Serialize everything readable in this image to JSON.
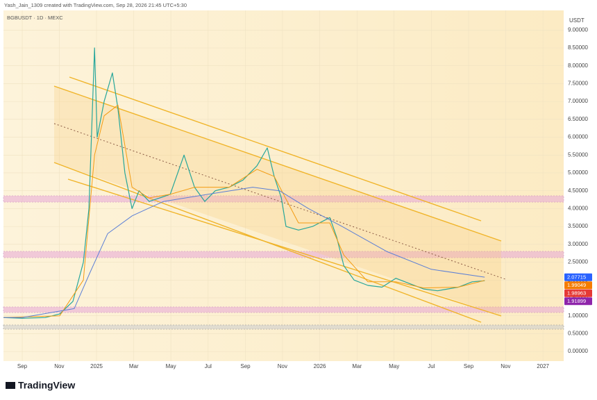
{
  "header": {
    "credit": "Yash_Jain_1309 created with TradingView.com, Sep 28, 2026 21:45 UTC+5:30",
    "symbol": "BGBUSDT · 1D · MEXC",
    "currency": "USDT",
    "logo": "TradingView"
  },
  "chart_data": {
    "type": "line",
    "xlim": [
      2024.583,
      2027.093
    ],
    "ylim": [
      -0.27,
      9.55
    ],
    "xticks": [
      {
        "value": 2024.667,
        "label": "Sep"
      },
      {
        "value": 2024.833,
        "label": "Nov"
      },
      {
        "value": 2025,
        "label": "2025"
      },
      {
        "value": 2025.167,
        "label": "Mar"
      },
      {
        "value": 2025.333,
        "label": "May"
      },
      {
        "value": 2025.5,
        "label": "Jul"
      },
      {
        "value": 2025.667,
        "label": "Sep"
      },
      {
        "value": 2025.833,
        "label": "Nov"
      },
      {
        "value": 2026,
        "label": "2026"
      },
      {
        "value": 2026.167,
        "label": "Mar"
      },
      {
        "value": 2026.333,
        "label": "May"
      },
      {
        "value": 2026.5,
        "label": "Jul"
      },
      {
        "value": 2026.667,
        "label": "Sep"
      },
      {
        "value": 2026.833,
        "label": "Nov"
      },
      {
        "value": 2027,
        "label": "2027"
      }
    ],
    "yticks": [
      {
        "value": 0,
        "label": "0.00000"
      },
      {
        "value": 0.5,
        "label": "0.50000"
      },
      {
        "value": 1,
        "label": "1.00000"
      },
      {
        "value": 1.5,
        "label": "1.50000"
      },
      {
        "value": 2,
        "label": "2.00000"
      },
      {
        "value": 2.5,
        "label": "2.50000"
      },
      {
        "value": 3,
        "label": "3.00000"
      },
      {
        "value": 3.5,
        "label": "3.50000"
      },
      {
        "value": 4,
        "label": "4.00000"
      },
      {
        "value": 4.5,
        "label": "4.50000"
      },
      {
        "value": 5,
        "label": "5.00000"
      },
      {
        "value": 5.5,
        "label": "5.50000"
      },
      {
        "value": 6,
        "label": "6.00000"
      },
      {
        "value": 6.5,
        "label": "6.50000"
      },
      {
        "value": 7,
        "label": "7.00000"
      },
      {
        "value": 7.5,
        "label": "7.50000"
      },
      {
        "value": 8,
        "label": "8.00000"
      },
      {
        "value": 8.5,
        "label": "8.50000"
      },
      {
        "value": 9,
        "label": "9.00000"
      }
    ],
    "grid": true,
    "series": [
      {
        "color": "#26a69a",
        "x": [
          2024.583,
          2024.667,
          2024.77,
          2024.835,
          2024.894,
          2024.941,
          2024.966,
          2024.991,
          2025.003,
          2025.034,
          2025.071,
          2025.096,
          2025.127,
          2025.159,
          2025.19,
          2025.236,
          2025.283,
          2025.33,
          2025.392,
          2025.439,
          2025.485,
          2025.532,
          2025.594,
          2025.656,
          2025.719,
          2025.765,
          2025.796,
          2025.828,
          2025.849,
          2025.905,
          2025.968,
          2026.045,
          2026.076,
          2026.108,
          2026.154,
          2026.216,
          2026.279,
          2026.341,
          2026.403,
          2026.465,
          2026.528,
          2026.621,
          2026.683,
          2026.739
        ],
        "values": [
          0.95,
          0.93,
          0.95,
          1.05,
          1.4,
          2.5,
          4.0,
          8.5,
          6.0,
          7.0,
          7.8,
          6.8,
          5.0,
          4.0,
          4.5,
          4.2,
          4.3,
          4.4,
          5.5,
          4.6,
          4.2,
          4.5,
          4.6,
          4.8,
          5.2,
          5.7,
          4.9,
          4.3,
          3.5,
          3.4,
          3.5,
          3.75,
          3.2,
          2.4,
          2.0,
          1.85,
          1.8,
          2.05,
          1.9,
          1.75,
          1.7,
          1.8,
          1.95,
          1.98
        ]
      },
      {
        "color": "#f39c12",
        "x": [
          2024.583,
          2024.835,
          2024.941,
          2024.991,
          2025.034,
          2025.096,
          2025.159,
          2025.236,
          2025.33,
          2025.439,
          2025.594,
          2025.719,
          2025.796,
          2025.905,
          2026.045,
          2026.108,
          2026.216,
          2026.341,
          2026.465,
          2026.621,
          2026.739
        ],
        "values": [
          0.95,
          1.0,
          2.0,
          5.5,
          6.6,
          6.9,
          4.6,
          4.3,
          4.4,
          4.6,
          4.6,
          5.1,
          4.9,
          3.6,
          3.6,
          2.7,
          1.95,
          1.95,
          1.78,
          1.8,
          1.99
        ]
      },
      {
        "color": "#5b7fd6",
        "x": [
          2024.583,
          2024.667,
          2024.9,
          2024.97,
          2025.05,
          2025.16,
          2025.3,
          2025.5,
          2025.7,
          2025.82,
          2025.95,
          2026.1,
          2026.3,
          2026.5,
          2026.739
        ],
        "values": [
          0.95,
          0.95,
          1.2,
          2.2,
          3.3,
          3.8,
          4.2,
          4.4,
          4.6,
          4.5,
          4.0,
          3.5,
          2.8,
          2.3,
          2.08
        ]
      }
    ],
    "price_labels": [
      {
        "label": "2.07715",
        "value": 2.07715,
        "color": "#2962ff"
      },
      {
        "label": "1.99049",
        "value": 1.99049,
        "color": "#f57c00"
      },
      {
        "label": "1.98963",
        "value": 1.98963,
        "color": "#e53935"
      },
      {
        "label": "1.91899",
        "value": 1.91899,
        "color": "#8e24aa"
      }
    ]
  }
}
